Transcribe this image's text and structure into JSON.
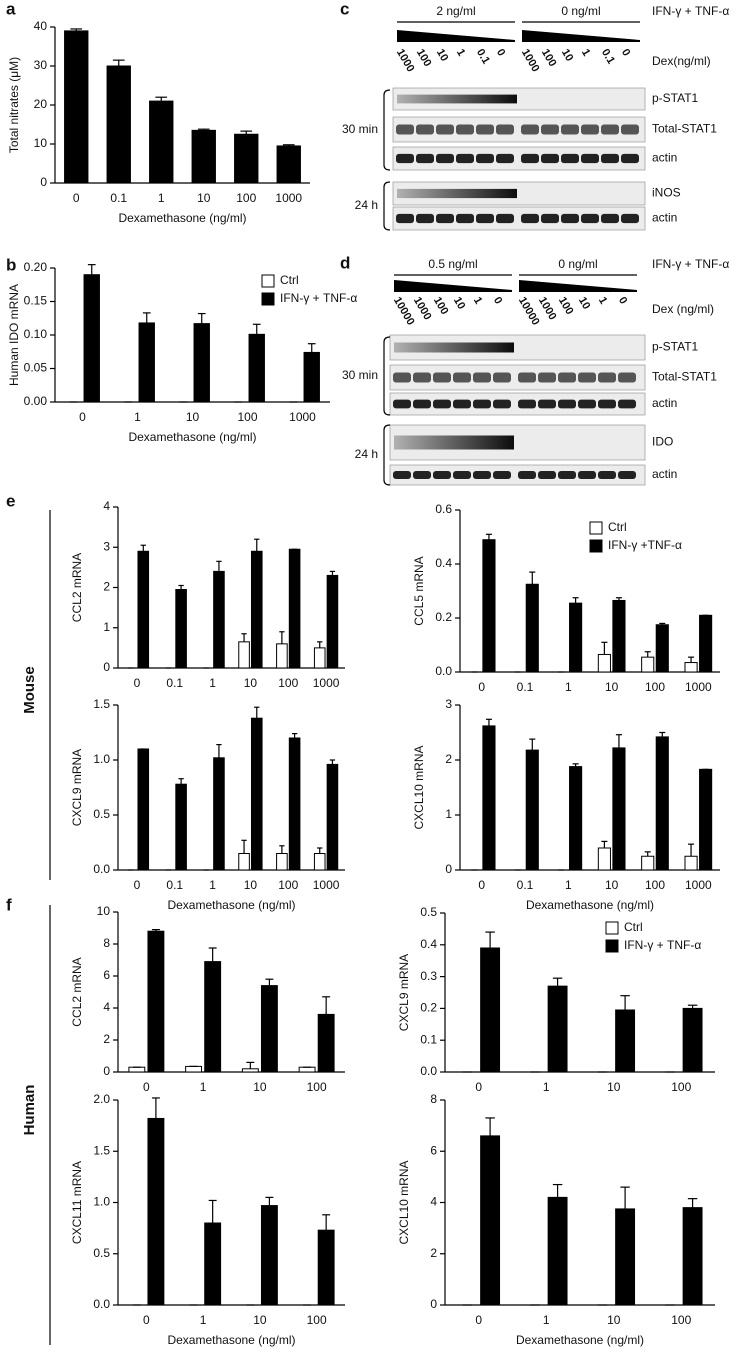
{
  "chart_data": [
    {
      "type": "bar",
      "panel": "a",
      "ylabel": "Total nitrates (μM)",
      "xlabel": "Dexamethasone (ng/ml)",
      "categories": [
        "0",
        "0.1",
        "1",
        "10",
        "100",
        "1000"
      ],
      "values": [
        39,
        30,
        21,
        13.5,
        12.5,
        9.5
      ],
      "errors": [
        0.5,
        1.5,
        1,
        0.3,
        0.8,
        0.3
      ],
      "color": "#000000",
      "ylim": [
        0,
        40
      ],
      "yticks": [
        0,
        10,
        20,
        30,
        40
      ]
    },
    {
      "type": "bar",
      "panel": "b",
      "ylabel": "Human IDO mRNA",
      "xlabel": "Dexamethasone (ng/ml)",
      "categories": [
        "0",
        "1",
        "10",
        "100",
        "1000"
      ],
      "series": [
        {
          "name": "Ctrl",
          "color": "#ffffff",
          "values": [
            0,
            0,
            0,
            0,
            0
          ],
          "errors": [
            0,
            0,
            0,
            0,
            0
          ]
        },
        {
          "name": "IFN-γ + TNF-α",
          "color": "#000000",
          "values": [
            0.19,
            0.118,
            0.117,
            0.101,
            0.074
          ],
          "errors": [
            0.015,
            0.015,
            0.015,
            0.015,
            0.013
          ]
        }
      ],
      "ylim": [
        0,
        0.2
      ],
      "yticks": [
        {
          "value": 0,
          "label": "0.00"
        },
        {
          "value": 0.05,
          "label": "0.05"
        },
        {
          "value": 0.1,
          "label": "0.10"
        },
        {
          "value": 0.15,
          "label": "0.15"
        },
        {
          "value": 0.2,
          "label": "0.20"
        }
      ],
      "legend": "upper right"
    },
    {
      "type": "bar",
      "panel": "e",
      "ylabel": "CCL2 mRNA",
      "categories": [
        "0",
        "0.1",
        "1",
        "10",
        "100",
        "1000"
      ],
      "series": [
        {
          "color": "#ffffff",
          "values": [
            0,
            0,
            0,
            0.65,
            0.6,
            0.5
          ],
          "errors": [
            0,
            0,
            0,
            0.2,
            0.3,
            0.15
          ]
        },
        {
          "color": "#000000",
          "values": [
            2.9,
            1.95,
            2.4,
            2.9,
            2.95,
            2.3
          ],
          "errors": [
            0.15,
            0.1,
            0.25,
            0.3,
            0,
            0.1
          ]
        }
      ],
      "ylim": [
        0,
        4
      ],
      "yticks": [
        0,
        1,
        2,
        3,
        4
      ]
    },
    {
      "type": "bar",
      "ylabel": "CCL5 mRNA",
      "categories": [
        "0",
        "0.1",
        "1",
        "10",
        "100",
        "1000"
      ],
      "series": [
        {
          "name": "Ctrl",
          "color": "#ffffff",
          "values": [
            0,
            0,
            0,
            0.065,
            0.055,
            0.035
          ],
          "errors": [
            0,
            0,
            0,
            0.045,
            0.02,
            0.02
          ]
        },
        {
          "name": "IFN-γ +TNF-α",
          "color": "#000000",
          "values": [
            0.49,
            0.325,
            0.255,
            0.265,
            0.175,
            0.21
          ],
          "errors": [
            0.02,
            0.045,
            0.02,
            0.01,
            0.005,
            0
          ]
        }
      ],
      "ylim": [
        0,
        0.6
      ],
      "yticks": [
        {
          "value": 0,
          "label": "0.0"
        },
        {
          "value": 0.2,
          "label": "0.2"
        },
        {
          "value": 0.4,
          "label": "0.4"
        },
        {
          "value": 0.6,
          "label": "0.6"
        }
      ],
      "legend": "upper right"
    },
    {
      "type": "bar",
      "ylabel": "CXCL9 mRNA",
      "xlabel": "Dexamethasone (ng/ml)",
      "categories": [
        "0",
        "0.1",
        "1",
        "10",
        "100",
        "1000"
      ],
      "series": [
        {
          "color": "#ffffff",
          "values": [
            0,
            0,
            0,
            0.15,
            0.15,
            0.15
          ],
          "errors": [
            0,
            0,
            0,
            0.12,
            0.07,
            0.05
          ]
        },
        {
          "color": "#000000",
          "values": [
            1.1,
            0.78,
            1.02,
            1.38,
            1.2,
            0.96
          ],
          "errors": [
            0,
            0.05,
            0.12,
            0.1,
            0.04,
            0.04
          ]
        }
      ],
      "ylim": [
        0,
        1.5
      ],
      "yticks": [
        {
          "value": 0,
          "label": "0.0"
        },
        {
          "value": 0.5,
          "label": "0.5"
        },
        {
          "value": 1,
          "label": "1.0"
        },
        {
          "value": 1.5,
          "label": "1.5"
        }
      ]
    },
    {
      "type": "bar",
      "ylabel": "CXCL10 mRNA",
      "xlabel": "Dexamethasone (ng/ml)",
      "categories": [
        "0",
        "0.1",
        "1",
        "10",
        "100",
        "1000"
      ],
      "series": [
        {
          "color": "#ffffff",
          "values": [
            0,
            0,
            0,
            0.4,
            0.25,
            0.25
          ],
          "errors": [
            0,
            0,
            0,
            0.12,
            0.08,
            0.22
          ]
        },
        {
          "color": "#000000",
          "values": [
            2.62,
            2.18,
            1.88,
            2.22,
            2.42,
            1.83
          ],
          "errors": [
            0.12,
            0.2,
            0.05,
            0.24,
            0.08,
            0
          ]
        }
      ],
      "ylim": [
        0,
        3
      ],
      "yticks": [
        0,
        1,
        2,
        3
      ]
    },
    {
      "type": "bar",
      "panel": "f",
      "ylabel": "CCL2 mRNA",
      "categories": [
        "0",
        "1",
        "10",
        "100"
      ],
      "series": [
        {
          "color": "#ffffff",
          "values": [
            0.3,
            0.35,
            0.2,
            0.3
          ],
          "errors": [
            0,
            0,
            0.4,
            0
          ]
        },
        {
          "color": "#000000",
          "values": [
            8.8,
            6.9,
            5.4,
            3.6
          ],
          "errors": [
            0.1,
            0.85,
            0.4,
            1.1
          ]
        }
      ],
      "ylim": [
        0,
        10
      ],
      "yticks": [
        0,
        2,
        4,
        6,
        8,
        10
      ]
    },
    {
      "type": "bar",
      "ylabel": "CXCL9 mRNA",
      "categories": [
        "0",
        "1",
        "10",
        "100"
      ],
      "series": [
        {
          "name": "Ctrl",
          "color": "#ffffff",
          "values": [
            0,
            0,
            0,
            0
          ],
          "errors": [
            0,
            0,
            0,
            0
          ]
        },
        {
          "name": "IFN-γ + TNF-α",
          "color": "#000000",
          "values": [
            0.39,
            0.27,
            0.195,
            0.2
          ],
          "errors": [
            0.05,
            0.025,
            0.045,
            0.01
          ]
        }
      ],
      "ylim": [
        0,
        0.5
      ],
      "yticks": [
        {
          "value": 0,
          "label": "0.0"
        },
        {
          "value": 0.1,
          "label": "0.1"
        },
        {
          "value": 0.2,
          "label": "0.2"
        },
        {
          "value": 0.3,
          "label": "0.3"
        },
        {
          "value": 0.4,
          "label": "0.4"
        },
        {
          "value": 0.5,
          "label": "0.5"
        }
      ],
      "legend": "upper right"
    },
    {
      "type": "bar",
      "ylabel": "CXCL11  mRNA",
      "xlabel": "Dexamethasone  (ng/ml)",
      "categories": [
        "0",
        "1",
        "10",
        "100"
      ],
      "series": [
        {
          "color": "#ffffff",
          "values": [
            0,
            0,
            0,
            0
          ],
          "errors": [
            0,
            0,
            0,
            0
          ]
        },
        {
          "color": "#000000",
          "values": [
            1.82,
            0.8,
            0.97,
            0.73
          ],
          "errors": [
            0.2,
            0.22,
            0.08,
            0.15
          ]
        }
      ],
      "ylim": [
        0,
        2
      ],
      "yticks": [
        {
          "value": 0,
          "label": "0.0"
        },
        {
          "value": 0.5,
          "label": "0.5"
        },
        {
          "value": 1,
          "label": "1.0"
        },
        {
          "value": 1.5,
          "label": "1.5"
        },
        {
          "value": 2,
          "label": "2.0"
        }
      ]
    },
    {
      "type": "bar",
      "ylabel": "CXCL10 mRNA",
      "xlabel": "Dexamethasone  (ng/ml)",
      "categories": [
        "0",
        "1",
        "10",
        "100"
      ],
      "series": [
        {
          "color": "#ffffff",
          "values": [
            0,
            0,
            0,
            0
          ],
          "errors": [
            0,
            0,
            0,
            0
          ]
        },
        {
          "color": "#000000",
          "values": [
            6.6,
            4.2,
            3.75,
            3.8
          ],
          "errors": [
            0.7,
            0.5,
            0.85,
            0.35
          ]
        }
      ],
      "ylim": [
        0,
        8
      ],
      "yticks": [
        0,
        2,
        4,
        6,
        8
      ]
    }
  ],
  "groups": [
    "Mouse",
    "Human"
  ],
  "blots": [
    {
      "panel": "c",
      "treatment": "IFN-γ + TNF-α",
      "groups": [
        "2 ng/ml",
        "0 ng/ml"
      ],
      "dex": "Dex(ng/ml)",
      "doses": [
        "1000",
        "100",
        "10",
        "1",
        "0.1",
        "0",
        "1000",
        "100",
        "10",
        "1",
        "0.1",
        "0"
      ],
      "times": [
        "30 min",
        "24 h"
      ],
      "rows": [
        "p-STAT1",
        "Total-STAT1",
        "actin",
        "iNOS",
        "actin"
      ]
    },
    {
      "panel": "d",
      "treatment": "IFN-γ + TNF-α",
      "groups": [
        "0.5 ng/ml",
        "0 ng/ml"
      ],
      "dex": "Dex (ng/ml)",
      "doses": [
        "10000",
        "1000",
        "100",
        "10",
        "1",
        "0",
        "10000",
        "1000",
        "100",
        "10",
        "1",
        "0"
      ],
      "times": [
        "30 min",
        "24 h"
      ],
      "rows": [
        "p-STAT1",
        "Total-STAT1",
        "actin",
        "IDO",
        "actin"
      ]
    }
  ]
}
